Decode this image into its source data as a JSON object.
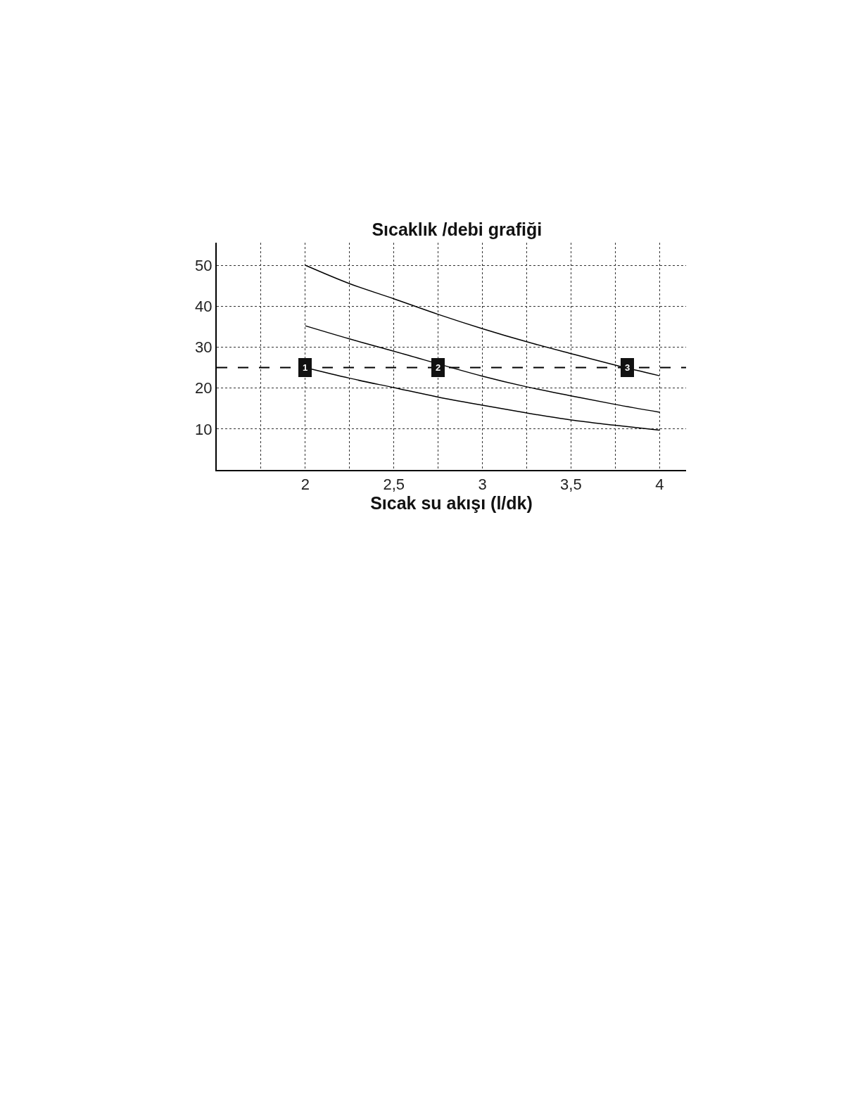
{
  "chart_data": {
    "type": "line",
    "title": "Sıcaklık /debi grafiği",
    "xlabel": "Sıcak su akışı (l/dk)",
    "x": [
      2,
      2.25,
      2.5,
      2.75,
      3,
      3.25,
      3.5,
      3.75,
      4
    ],
    "series": [
      {
        "color": "#000000",
        "values": [
          50,
          45.5,
          41.8,
          38.0,
          34.5,
          31.3,
          28.4,
          25.6,
          23.0
        ]
      },
      {
        "color": "#000000",
        "values": [
          35.2,
          32.0,
          29.0,
          null,
          22.9,
          20.3,
          18.1,
          16.0,
          14.1
        ]
      },
      {
        "color": "#000000",
        "values": [
          25,
          22.4,
          20.1,
          17.8,
          15.8,
          13.9,
          12.2,
          10.9,
          9.7
        ]
      }
    ],
    "xlim": [
      1.5,
      4.15
    ],
    "ylim": [
      0,
      55.5
    ],
    "xticks": [
      {
        "value": 1.75,
        "label": null
      },
      2,
      {
        "value": 2.25,
        "label": null
      },
      {
        "value": 2.5,
        "label": "2,5"
      },
      {
        "value": 2.75,
        "label": null
      },
      3,
      {
        "value": 3.25,
        "label": null
      },
      {
        "value": 3.5,
        "label": "3,5"
      },
      {
        "value": 3.75,
        "label": null
      },
      4
    ],
    "yticks": [
      10,
      20,
      30,
      40,
      50
    ],
    "grid": true,
    "marker": "none",
    "line_style": "solid",
    "ref_lines": [
      {
        "axis": "y",
        "value": 25,
        "label": null,
        "color": "#000000",
        "line_style": "dashed"
      }
    ],
    "annotations": [
      {
        "text": "1",
        "x": 2,
        "y": 25
      },
      {
        "text": "2",
        "x": 2.75,
        "y": 25
      },
      {
        "text": "3",
        "x": 3.82,
        "y": 25
      }
    ]
  }
}
